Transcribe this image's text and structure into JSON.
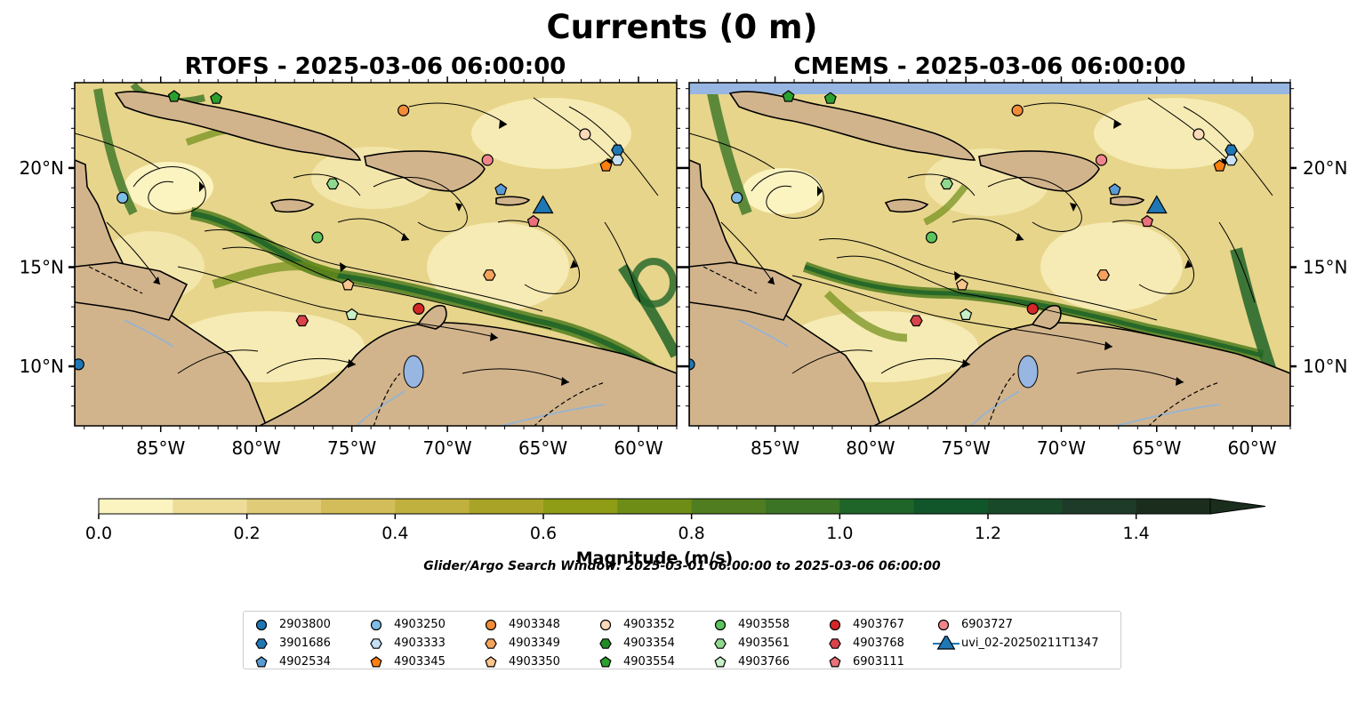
{
  "figure": {
    "suptitle": "Currents (0 m)",
    "search_window": "Glider/Argo Search Window: 2025-03-01 06:00:00 to 2025-03-06 06:00:00"
  },
  "panels": [
    {
      "id": "rtofs",
      "title": "RTOFS - 2025-03-06 06:00:00"
    },
    {
      "id": "cmems",
      "title": "CMEMS - 2025-03-06 06:00:00"
    }
  ],
  "map_extent": {
    "lon": [
      -89.5,
      -58.0
    ],
    "lat": [
      7.0,
      24.3
    ]
  },
  "lon_ticks": [
    -85,
    -80,
    -75,
    -70,
    -65,
    -60
  ],
  "lon_tick_labels": [
    "85°W",
    "80°W",
    "75°W",
    "70°W",
    "65°W",
    "60°W"
  ],
  "lat_ticks": [
    10,
    15,
    20
  ],
  "lat_tick_labels": [
    "10°N",
    "15°N",
    "20°N"
  ],
  "colorbar": {
    "label": "Magnitude (m/s)",
    "ticks": [
      0.0,
      0.2,
      0.4,
      0.6,
      0.8,
      1.0,
      1.2,
      1.4
    ],
    "tick_labels": [
      "0.0",
      "0.2",
      "0.4",
      "0.6",
      "0.8",
      "1.0",
      "1.2",
      "1.4"
    ],
    "range": [
      0.0,
      1.5
    ],
    "extend": "max",
    "colors": [
      "#fbf3c0",
      "#eddd98",
      "#e0cb78",
      "#d2bd5a",
      "#c0b03e",
      "#a9a427",
      "#8f9c15",
      "#6e8d17",
      "#4f7d1f",
      "#3a7424",
      "#1f6428",
      "#11562a",
      "#184a2a",
      "#1d3b28",
      "#1b2e1e"
    ]
  },
  "colors": {
    "land": "#d2b48c",
    "water_body": "#97b6e1",
    "rivers": "#9ab3cc"
  },
  "legend": {
    "entries": [
      {
        "label": "2903800",
        "marker": "circle",
        "color": "#1f77b4"
      },
      {
        "label": "3901686",
        "marker": "hexagon",
        "color": "#1f77b4"
      },
      {
        "label": "4902534",
        "marker": "pentagon",
        "color": "#5b9bd5"
      },
      {
        "label": "4903250",
        "marker": "circle",
        "color": "#7fbde6"
      },
      {
        "label": "4903333",
        "marker": "hexagon",
        "color": "#c6e0f5"
      },
      {
        "label": "4903345",
        "marker": "pentagon",
        "color": "#ff7f0e"
      },
      {
        "label": "4903348",
        "marker": "circle",
        "color": "#f28c38"
      },
      {
        "label": "4903349",
        "marker": "hexagon",
        "color": "#f5a35c"
      },
      {
        "label": "4903350",
        "marker": "pentagon",
        "color": "#f9c58d"
      },
      {
        "label": "4903352",
        "marker": "circle",
        "color": "#fcd9b8"
      },
      {
        "label": "4903354",
        "marker": "hexagon",
        "color": "#238b23"
      },
      {
        "label": "4903554",
        "marker": "pentagon",
        "color": "#2ca02c"
      },
      {
        "label": "4903558",
        "marker": "circle",
        "color": "#5cc45c"
      },
      {
        "label": "4903561",
        "marker": "hexagon",
        "color": "#8fd98f"
      },
      {
        "label": "4903766",
        "marker": "pentagon",
        "color": "#c8f0c8"
      },
      {
        "label": "4903767",
        "marker": "circle",
        "color": "#d62728"
      },
      {
        "label": "4903768",
        "marker": "hexagon",
        "color": "#d9434a"
      },
      {
        "label": "6903111",
        "marker": "pentagon",
        "color": "#e8717a"
      },
      {
        "label": "6903727",
        "marker": "circle",
        "color": "#f0868c"
      },
      {
        "label": "uvi_02-20250211T1347",
        "marker": "triangle",
        "color": "#1f77b4"
      }
    ]
  },
  "markers_rtofs": [
    {
      "id": "2903800",
      "marker": "circle",
      "color": "#1f77b4",
      "lon": -89.3,
      "lat": 10.1
    },
    {
      "id": "4903250",
      "marker": "circle",
      "color": "#7fbde6",
      "lon": -87.0,
      "lat": 18.5
    },
    {
      "id": "4903554",
      "marker": "pentagon",
      "color": "#2ca02c",
      "lon": -84.3,
      "lat": 23.6
    },
    {
      "id": "4903554",
      "marker": "pentagon",
      "color": "#2ca02c",
      "lon": -82.1,
      "lat": 23.5
    },
    {
      "id": "4903348",
      "marker": "circle",
      "color": "#f28c38",
      "lon": -72.3,
      "lat": 22.9
    },
    {
      "id": "4903352",
      "marker": "circle",
      "color": "#fcd9b8",
      "lon": -62.8,
      "lat": 21.7
    },
    {
      "id": "3901686",
      "marker": "hexagon",
      "color": "#1f77b4",
      "lon": -61.1,
      "lat": 20.9
    },
    {
      "id": "4903333",
      "marker": "hexagon",
      "color": "#c6e0f5",
      "lon": -61.1,
      "lat": 20.4
    },
    {
      "id": "4903345",
      "marker": "pentagon",
      "color": "#ff7f0e",
      "lon": -61.7,
      "lat": 20.1
    },
    {
      "id": "6903727",
      "marker": "circle",
      "color": "#f0868c",
      "lon": -67.9,
      "lat": 20.4
    },
    {
      "id": "4902534",
      "marker": "pentagon",
      "color": "#5b9bd5",
      "lon": -67.2,
      "lat": 18.9
    },
    {
      "id": "6903111",
      "marker": "pentagon",
      "color": "#e8717a",
      "lon": -65.5,
      "lat": 17.3
    },
    {
      "id": "4903561",
      "marker": "hexagon",
      "color": "#8fd98f",
      "lon": -76.0,
      "lat": 19.2
    },
    {
      "id": "4903558",
      "marker": "circle",
      "color": "#5cc45c",
      "lon": -76.8,
      "lat": 16.5
    },
    {
      "id": "4903350",
      "marker": "pentagon",
      "color": "#f9c58d",
      "lon": -75.2,
      "lat": 14.1
    },
    {
      "id": "4903349",
      "marker": "hexagon",
      "color": "#f5a35c",
      "lon": -67.8,
      "lat": 14.6
    },
    {
      "id": "4903766",
      "marker": "pentagon",
      "color": "#c8f0c8",
      "lon": -75.0,
      "lat": 12.6
    },
    {
      "id": "4903768",
      "marker": "hexagon",
      "color": "#d9434a",
      "lon": -77.6,
      "lat": 12.3
    },
    {
      "id": "4903767",
      "marker": "circle",
      "color": "#d62728",
      "lon": -71.5,
      "lat": 12.9
    },
    {
      "id": "uvi_02-20250211T1347",
      "marker": "triangle",
      "color": "#1f77b4",
      "lon": -65.0,
      "lat": 18.1
    }
  ],
  "markers_cmems": [
    {
      "id": "2903800",
      "marker": "circle",
      "color": "#1f77b4",
      "lon": -89.5,
      "lat": 10.1
    },
    {
      "id": "4903250",
      "marker": "circle",
      "color": "#7fbde6",
      "lon": -87.0,
      "lat": 18.5
    },
    {
      "id": "4903554",
      "marker": "pentagon",
      "color": "#2ca02c",
      "lon": -84.3,
      "lat": 23.6
    },
    {
      "id": "4903554",
      "marker": "pentagon",
      "color": "#2ca02c",
      "lon": -82.1,
      "lat": 23.5
    },
    {
      "id": "4903348",
      "marker": "circle",
      "color": "#f28c38",
      "lon": -72.3,
      "lat": 22.9
    },
    {
      "id": "4903352",
      "marker": "circle",
      "color": "#fcd9b8",
      "lon": -62.8,
      "lat": 21.7
    },
    {
      "id": "3901686",
      "marker": "hexagon",
      "color": "#1f77b4",
      "lon": -61.1,
      "lat": 20.9
    },
    {
      "id": "4903333",
      "marker": "hexagon",
      "color": "#c6e0f5",
      "lon": -61.1,
      "lat": 20.4
    },
    {
      "id": "4903345",
      "marker": "pentagon",
      "color": "#ff7f0e",
      "lon": -61.7,
      "lat": 20.1
    },
    {
      "id": "6903727",
      "marker": "circle",
      "color": "#f0868c",
      "lon": -67.9,
      "lat": 20.4
    },
    {
      "id": "4902534",
      "marker": "pentagon",
      "color": "#5b9bd5",
      "lon": -67.2,
      "lat": 18.9
    },
    {
      "id": "6903111",
      "marker": "pentagon",
      "color": "#e8717a",
      "lon": -65.5,
      "lat": 17.3
    },
    {
      "id": "4903561",
      "marker": "hexagon",
      "color": "#8fd98f",
      "lon": -76.0,
      "lat": 19.2
    },
    {
      "id": "4903558",
      "marker": "circle",
      "color": "#5cc45c",
      "lon": -76.8,
      "lat": 16.5
    },
    {
      "id": "4903350",
      "marker": "pentagon",
      "color": "#f9c58d",
      "lon": -75.2,
      "lat": 14.1
    },
    {
      "id": "4903349",
      "marker": "hexagon",
      "color": "#f5a35c",
      "lon": -67.8,
      "lat": 14.6
    },
    {
      "id": "4903766",
      "marker": "pentagon",
      "color": "#c8f0c8",
      "lon": -75.0,
      "lat": 12.6
    },
    {
      "id": "4903768",
      "marker": "hexagon",
      "color": "#d9434a",
      "lon": -77.6,
      "lat": 12.3
    },
    {
      "id": "4903767",
      "marker": "circle",
      "color": "#d62728",
      "lon": -71.5,
      "lat": 12.9
    },
    {
      "id": "uvi_02-20250211T1347",
      "marker": "triangle",
      "color": "#1f77b4",
      "lon": -65.0,
      "lat": 18.1
    }
  ]
}
